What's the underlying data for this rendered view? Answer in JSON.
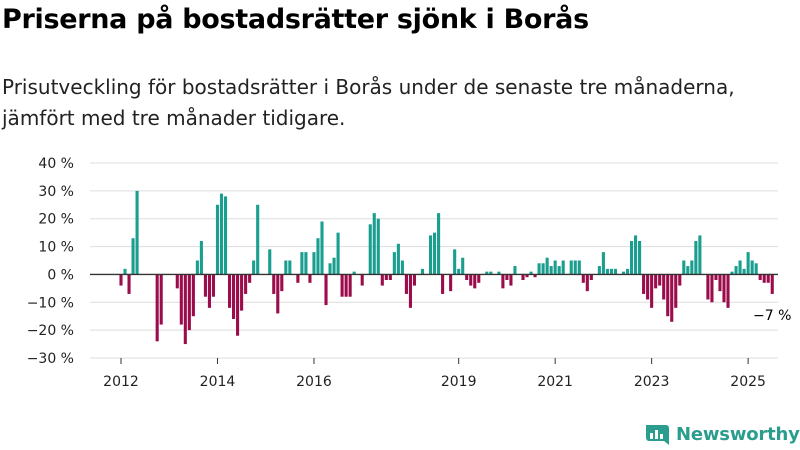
{
  "title": "Priserna på bostadsrätter sjönk i Borås",
  "subtitle": "Prisutveckling för bostadsrätter i Borås under de senaste tre månaderna, jämfört med tre månader tidigare.",
  "brand": {
    "name": "Newsworthy",
    "icon": "bar-chart-logo-icon"
  },
  "colors": {
    "positive": "#1a9e8f",
    "negative": "#9b0c4a",
    "grid": "#dddddd",
    "brand": "#2a9d8f"
  },
  "chart_data": {
    "type": "bar",
    "title": "",
    "xlabel": "",
    "ylabel": "",
    "ylim": [
      -30,
      40
    ],
    "grid": true,
    "y_ticks": [
      40,
      30,
      20,
      10,
      0,
      -10,
      -20,
      -30
    ],
    "y_tick_labels": [
      "40 %",
      "30 %",
      "20 %",
      "10 %",
      "0 %",
      "−10 %",
      "−20 %",
      "−30 %"
    ],
    "x_ticks": [
      {
        "label": "2012",
        "index": 0
      },
      {
        "label": "2014",
        "index": 24
      },
      {
        "label": "2016",
        "index": 48
      },
      {
        "label": "2019",
        "index": 84
      },
      {
        "label": "2021",
        "index": 108
      },
      {
        "label": "2023",
        "index": 132
      },
      {
        "label": "2025",
        "index": 156
      }
    ],
    "first_month": "2012-01",
    "last_label": "−7 %",
    "values": [
      -4,
      2,
      -7,
      13,
      30,
      0,
      0,
      0,
      0,
      -24,
      -18,
      0,
      0,
      0,
      -5,
      -18,
      -25,
      -20,
      -15,
      5,
      12,
      -8,
      -12,
      -8,
      25,
      29,
      28,
      -12,
      -16,
      -22,
      -13,
      -7,
      -3,
      5,
      25,
      0,
      0,
      9,
      -7,
      -14,
      -6,
      5,
      5,
      0,
      -3,
      8,
      8,
      -3,
      8,
      13,
      19,
      -11,
      4,
      6,
      15,
      -8,
      -8,
      -8,
      1,
      0,
      -4,
      0,
      18,
      22,
      20,
      -4,
      -2,
      -2,
      8,
      11,
      5,
      -7,
      -12,
      -4,
      0,
      2,
      0,
      14,
      15,
      22,
      -7,
      0,
      -6,
      9,
      2,
      6,
      -2,
      -4,
      -5,
      -3,
      0,
      1,
      1,
      0,
      1,
      -5,
      -2,
      -4,
      3,
      0,
      -2,
      -1,
      1,
      -1,
      4,
      4,
      6,
      3,
      5,
      3,
      5,
      0,
      5,
      5,
      5,
      -3,
      -6,
      -2,
      0,
      3,
      8,
      2,
      2,
      2,
      0,
      1,
      2,
      12,
      14,
      12,
      -7,
      -9,
      -12,
      -5,
      -4,
      -9,
      -15,
      -17,
      -12,
      -4,
      5,
      3,
      5,
      12,
      14,
      0,
      -9,
      -10,
      -2,
      -6,
      -10,
      -12,
      1,
      3,
      5,
      2,
      8,
      5,
      4,
      -2,
      -3,
      -3,
      -7
    ]
  }
}
